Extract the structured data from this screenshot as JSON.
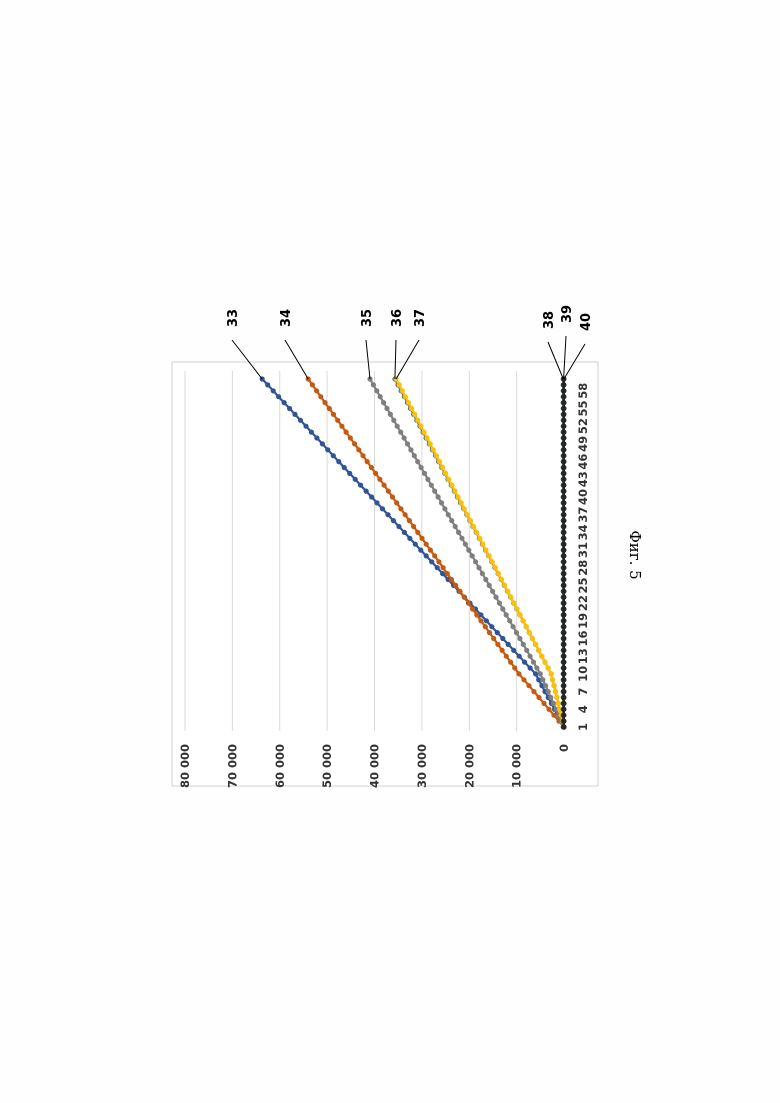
{
  "figure_caption": "Фиг. 5",
  "chart_data": {
    "type": "line",
    "x": [
      1,
      2,
      3,
      4,
      5,
      6,
      7,
      8,
      9,
      10,
      11,
      12,
      13,
      14,
      15,
      16,
      17,
      18,
      19,
      20,
      21,
      22,
      23,
      24,
      25,
      26,
      27,
      28,
      29,
      30,
      31,
      32,
      33,
      34,
      35,
      36,
      37,
      38,
      39,
      40,
      41,
      42,
      43,
      44,
      45,
      46,
      47,
      48,
      49,
      50,
      51,
      52,
      53,
      54,
      55,
      56,
      57,
      58,
      59,
      60
    ],
    "x_tick_labels": [
      "1",
      "4",
      "7",
      "10",
      "13",
      "16",
      "19",
      "22",
      "25",
      "28",
      "31",
      "34",
      "37",
      "40",
      "43",
      "46",
      "49",
      "52",
      "55",
      "58"
    ],
    "y_tick_labels": [
      "0",
      "10 000",
      "20 000",
      "30 000",
      "40 000",
      "50 000",
      "60 000",
      "70 000",
      "80 000"
    ],
    "ylim": [
      0,
      80000
    ],
    "grid": true,
    "series": [
      {
        "label": "33",
        "color": "#2f5597",
        "start": 0,
        "k1": 666.7,
        "kn": 1154.0
      },
      {
        "label": "34",
        "color": "#c55a11",
        "start": 0,
        "k1": 1055.6,
        "kn": 890.0
      },
      {
        "label": "35",
        "color": "#7f7f7f",
        "start": 0,
        "k1": 555.6,
        "kn": 719.0
      },
      {
        "label": "36",
        "color": "#4472c4",
        "start": 0,
        "k1": 300.0,
        "kn": 660.0
      },
      {
        "label": "37",
        "color": "#ffc000",
        "start": 0,
        "k1": 300.0,
        "kn": 655.0
      },
      {
        "label": "38",
        "color": "#1f3864",
        "start": 150,
        "k1": 0,
        "kn": 0
      },
      {
        "label": "39",
        "color": "#375623",
        "start": 80,
        "k1": 0,
        "kn": 0
      },
      {
        "label": "40",
        "color": "#262626",
        "start": 30,
        "k1": 0,
        "kn": 0
      }
    ]
  }
}
